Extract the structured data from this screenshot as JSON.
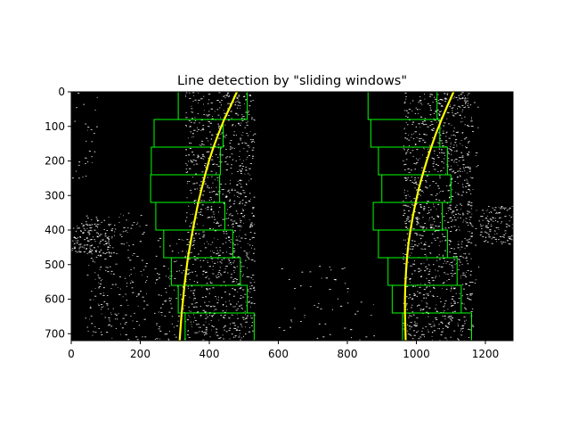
{
  "chart_data": {
    "type": "image-plot",
    "title": "Line detection by \"sliding windows\"",
    "image_size": [
      1280,
      720
    ],
    "xlim": [
      0,
      1280
    ],
    "ylim": [
      720,
      0
    ],
    "xticks": [
      0,
      200,
      400,
      600,
      800,
      1000,
      1200
    ],
    "yticks": [
      0,
      100,
      200,
      300,
      400,
      500,
      600,
      700
    ],
    "colors": {
      "background": "#000000",
      "pixels": "#ffffff",
      "windows": "#00ff00",
      "fit_line": "#ffff00"
    },
    "windows": {
      "height": 80,
      "left": [
        [
          330,
          530
        ],
        [
          310,
          510
        ],
        [
          290,
          490
        ],
        [
          268,
          468
        ],
        [
          245,
          445
        ],
        [
          230,
          430
        ],
        [
          232,
          432
        ],
        [
          240,
          440
        ],
        [
          310,
          510
        ]
      ],
      "right": [
        [
          960,
          1160
        ],
        [
          930,
          1130
        ],
        [
          918,
          1118
        ],
        [
          890,
          1090
        ],
        [
          875,
          1075
        ],
        [
          900,
          1100
        ],
        [
          890,
          1090
        ],
        [
          868,
          1068
        ],
        [
          860,
          1060
        ]
      ]
    },
    "fit_lines": {
      "left": [
        {
          "x": 480,
          "y": 0
        },
        {
          "x": 462,
          "y": 40
        },
        {
          "x": 443,
          "y": 80
        },
        {
          "x": 427,
          "y": 120
        },
        {
          "x": 412,
          "y": 160
        },
        {
          "x": 399,
          "y": 200
        },
        {
          "x": 388,
          "y": 240
        },
        {
          "x": 378,
          "y": 280
        },
        {
          "x": 368,
          "y": 320
        },
        {
          "x": 360,
          "y": 360
        },
        {
          "x": 352,
          "y": 400
        },
        {
          "x": 345,
          "y": 440
        },
        {
          "x": 338,
          "y": 480
        },
        {
          "x": 333,
          "y": 520
        },
        {
          "x": 328,
          "y": 560
        },
        {
          "x": 324,
          "y": 600
        },
        {
          "x": 320,
          "y": 640
        },
        {
          "x": 317,
          "y": 680
        },
        {
          "x": 314,
          "y": 720
        }
      ],
      "right": [
        {
          "x": 1108,
          "y": 0
        },
        {
          "x": 1090,
          "y": 40
        },
        {
          "x": 1073,
          "y": 80
        },
        {
          "x": 1057,
          "y": 120
        },
        {
          "x": 1043,
          "y": 160
        },
        {
          "x": 1030,
          "y": 200
        },
        {
          "x": 1018,
          "y": 240
        },
        {
          "x": 1007,
          "y": 280
        },
        {
          "x": 998,
          "y": 320
        },
        {
          "x": 990,
          "y": 360
        },
        {
          "x": 983,
          "y": 400
        },
        {
          "x": 977,
          "y": 440
        },
        {
          "x": 973,
          "y": 480
        },
        {
          "x": 970,
          "y": 520
        },
        {
          "x": 968,
          "y": 560
        },
        {
          "x": 967,
          "y": 600
        },
        {
          "x": 967,
          "y": 640
        },
        {
          "x": 968,
          "y": 680
        },
        {
          "x": 969,
          "y": 720
        }
      ]
    },
    "pixel_clusters": [
      {
        "x": [
          330,
          530
        ],
        "y": [
          0,
          720
        ],
        "density": 0.012
      },
      {
        "x": [
          960,
          1160
        ],
        "y": [
          0,
          720
        ],
        "density": 0.012
      },
      {
        "x": [
          40,
          220
        ],
        "y": [
          350,
          720
        ],
        "density": 0.006
      },
      {
        "x": [
          0,
          120
        ],
        "y": [
          380,
          470
        ],
        "density": 0.02
      },
      {
        "x": [
          0,
          90
        ],
        "y": [
          0,
          260
        ],
        "density": 0.002
      },
      {
        "x": [
          600,
          880
        ],
        "y": [
          500,
          720
        ],
        "density": 0.0015
      },
      {
        "x": [
          1180,
          1280
        ],
        "y": [
          330,
          440
        ],
        "density": 0.02
      },
      {
        "x": [
          240,
          330
        ],
        "y": [
          420,
          720
        ],
        "density": 0.006
      },
      {
        "x": [
          1060,
          1180
        ],
        "y": [
          0,
          700
        ],
        "density": 0.002
      }
    ]
  }
}
